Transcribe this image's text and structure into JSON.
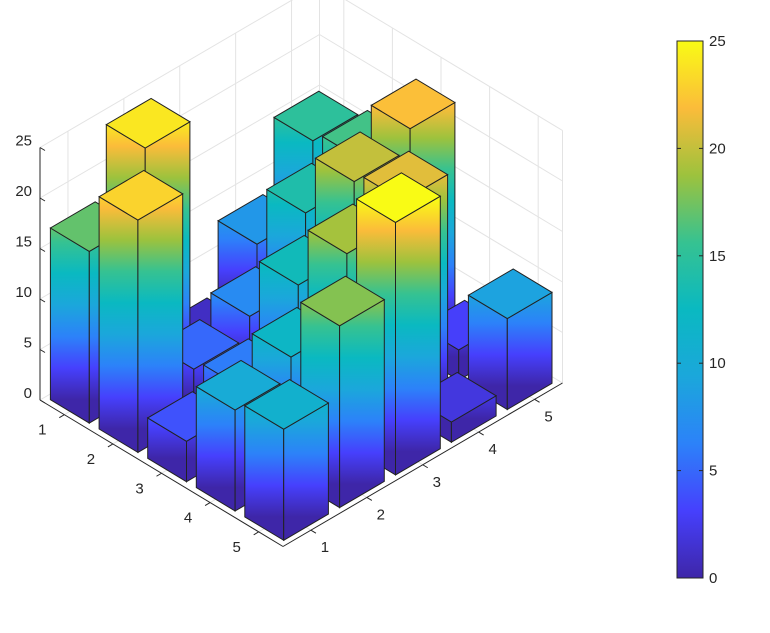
{
  "chart_data": {
    "type": "bar3",
    "x": [
      1,
      2,
      3,
      4,
      5
    ],
    "y": [
      1,
      2,
      3,
      4,
      5
    ],
    "z": [
      [
        17,
        24,
        1,
        8,
        15
      ],
      [
        23,
        5,
        7,
        14,
        16
      ],
      [
        4,
        6,
        13,
        20,
        22
      ],
      [
        10,
        12,
        19,
        21,
        3
      ],
      [
        11,
        18,
        25,
        2,
        9
      ]
    ],
    "zlim": [
      0,
      25
    ],
    "zticks": [
      "0",
      "5",
      "10",
      "15",
      "20",
      "25"
    ],
    "xtick_labels": [
      "1",
      "2",
      "3",
      "4",
      "5"
    ],
    "ytick_labels": [
      "1",
      "2",
      "3",
      "4",
      "5"
    ],
    "grid": true,
    "colormap": "parula",
    "colorbar": {
      "limits": [
        0,
        25
      ],
      "ticks": [
        "0",
        "5",
        "10",
        "15",
        "20",
        "25"
      ]
    }
  }
}
